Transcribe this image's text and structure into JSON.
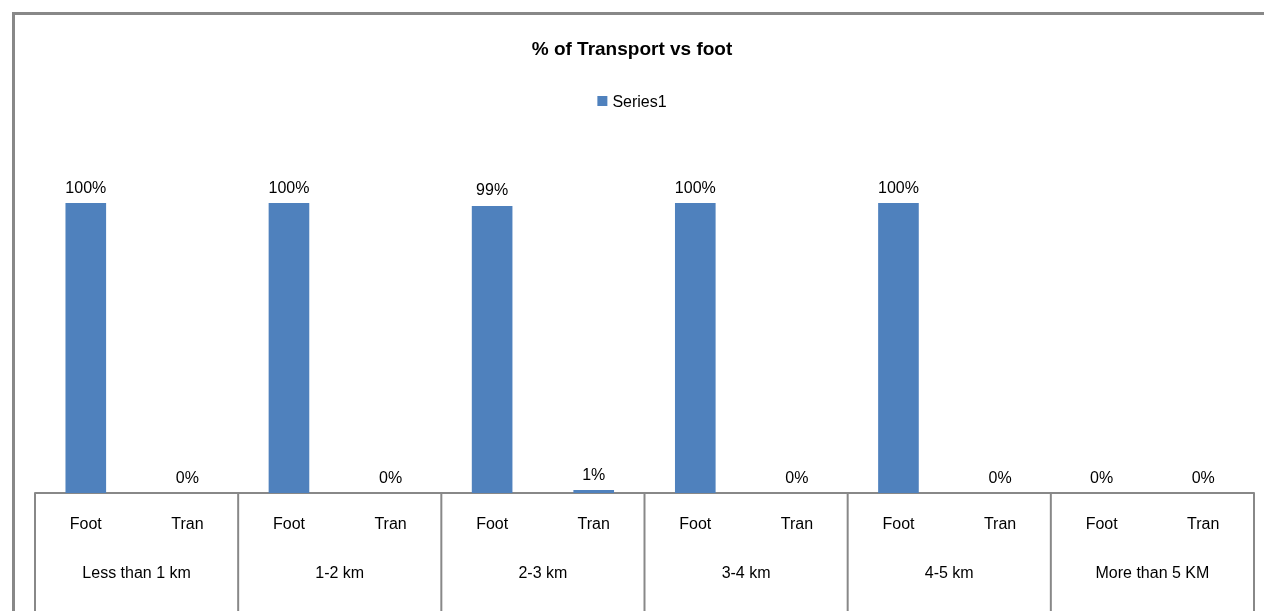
{
  "chart_data": {
    "type": "bar",
    "title": "% of Transport vs foot",
    "categories": [
      "Foot",
      "Tran",
      "Foot",
      "Tran",
      "Foot",
      "Tran",
      "Foot",
      "Tran",
      "Foot",
      "Tran",
      "Foot",
      "Tran"
    ],
    "series": [
      {
        "name": "Series1",
        "color": "#4f81bd",
        "values": [
          100,
          0,
          100,
          0,
          99,
          1,
          100,
          0,
          100,
          0,
          0,
          0
        ],
        "value_labels": [
          "100%",
          "0%",
          "100%",
          "0%",
          "99%",
          "1%",
          "100%",
          "0%",
          "100%",
          "0%",
          "0%",
          "0%"
        ]
      }
    ],
    "annotations": [
      "Less than 1 km",
      "1-2 km",
      "2-3 km",
      "3-4 km",
      "4-5 km",
      "More than 5 KM"
    ],
    "legend": "top"
  }
}
